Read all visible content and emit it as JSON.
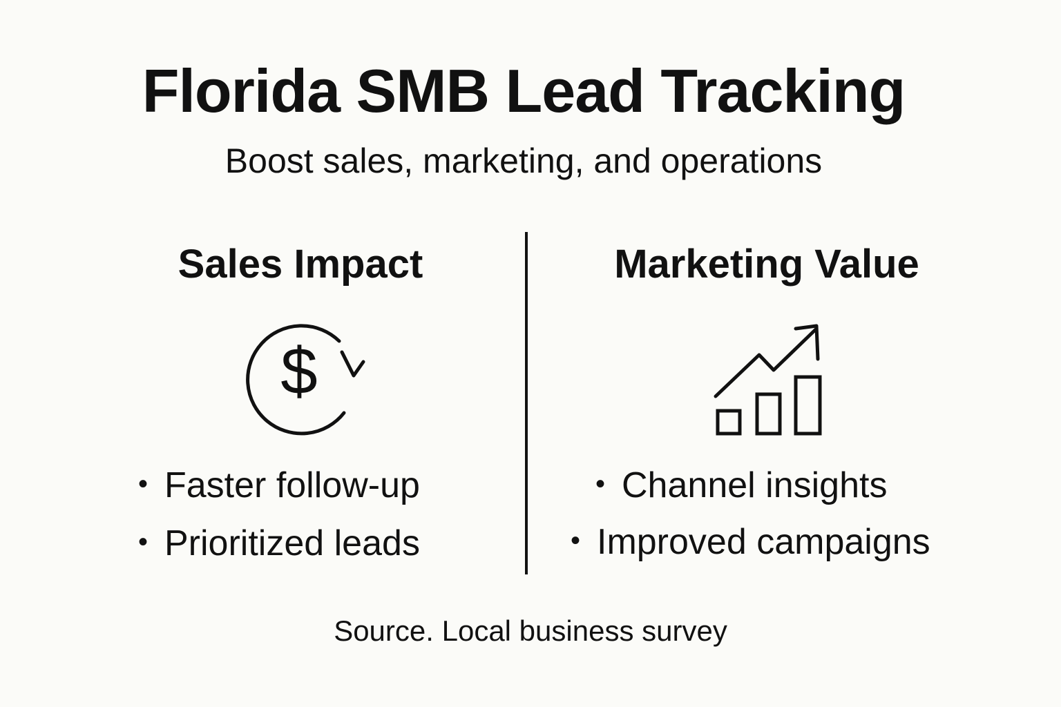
{
  "header": {
    "title": "Florida SMB Lead Tracking",
    "subtitle": "Boost sales, marketing, and operations"
  },
  "columns": {
    "left": {
      "heading": "Sales Impact",
      "icon": "dollar-cycle-icon",
      "bullets": [
        "Faster follow-up",
        "Prioritized leads"
      ]
    },
    "right": {
      "heading": "Marketing Value",
      "icon": "growth-chart-icon",
      "bullets": [
        "Channel insights",
        "Improved campaigns"
      ]
    }
  },
  "footer": {
    "source": "Source. Local business survey"
  },
  "colors": {
    "background": "#fbfbf8",
    "ink": "#111111"
  }
}
